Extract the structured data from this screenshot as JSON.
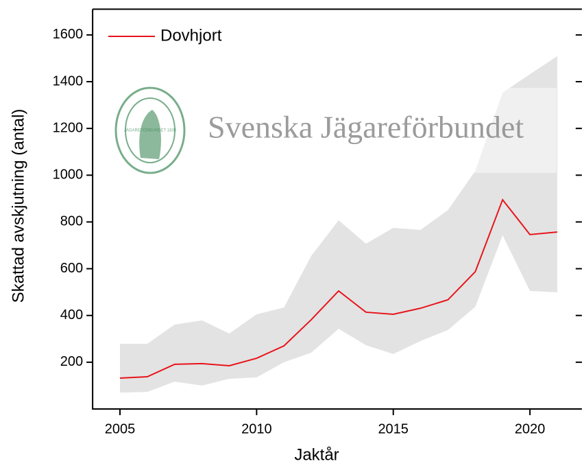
{
  "chart_data": {
    "type": "line",
    "xlabel": "Jaktår",
    "ylabel": "Skattad avskjutning (antal)",
    "watermark": "Svenska Jägareförbundet",
    "logo_text": "JÄGAREFÖRBUNDET 1830",
    "x": [
      2005,
      2006,
      2007,
      2008,
      2009,
      2010,
      2011,
      2012,
      2013,
      2014,
      2015,
      2016,
      2017,
      2018,
      2019,
      2020,
      2021
    ],
    "series": [
      {
        "name": "Dovhjort",
        "color": "#e8141a",
        "values": [
          132,
          138,
          191,
          194,
          185,
          217,
          270,
          382,
          505,
          414,
          405,
          431,
          467,
          587,
          895,
          746,
          757
        ]
      }
    ],
    "band": {
      "color": "#e3e3e3",
      "upper": [
        279,
        279,
        361,
        379,
        323,
        405,
        434,
        655,
        807,
        707,
        775,
        766,
        851,
        1018,
        1353,
        1432,
        1509
      ],
      "lower": [
        70,
        73,
        117,
        100,
        129,
        135,
        200,
        241,
        343,
        273,
        235,
        291,
        338,
        437,
        743,
        505,
        499
      ]
    },
    "xlim": [
      2004,
      2021.9
    ],
    "xticks": [
      2005,
      2010,
      2015,
      2020
    ],
    "ylim": [
      0,
      1710
    ],
    "yticks": [
      200,
      400,
      600,
      800,
      1000,
      1200,
      1400,
      1600
    ],
    "legend": "upper left"
  }
}
